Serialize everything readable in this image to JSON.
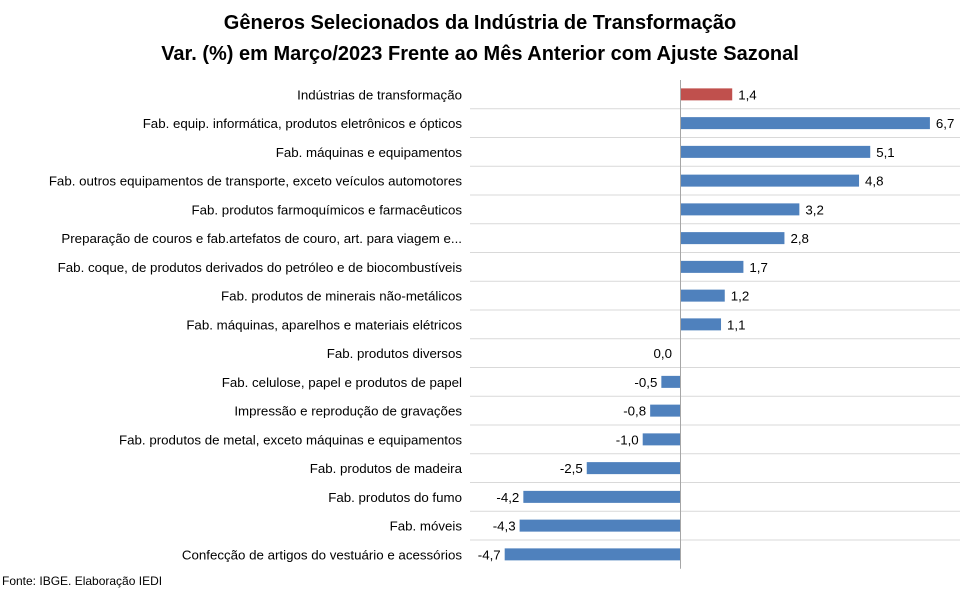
{
  "chart_data": {
    "type": "bar",
    "orientation": "horizontal",
    "title": "Gêneros Selecionados da Indústria de Transformação",
    "subtitle": "Var. (%) em Março/2023 Frente ao Mês Anterior com Ajuste Sazonal",
    "xlabel": "",
    "ylabel": "",
    "xlim": [
      -5.0,
      7.0
    ],
    "grid": "horizontal separators",
    "legend": "none",
    "categories": [
      "Indústrias de transformação",
      "Fab. equip. informática, produtos eletrônicos e ópticos",
      "Fab. máquinas e equipamentos",
      "Fab. outros equipamentos de transporte, exceto veículos automotores",
      "Fab. produtos farmoquímicos e farmacêuticos",
      "Preparação de couros e fab.artefatos de couro, art. para viagem e...",
      "Fab. coque, de produtos derivados do petróleo e de biocombustíveis",
      "Fab. produtos de minerais não-metálicos",
      "Fab. máquinas, aparelhos e materiais elétricos",
      "Fab. produtos diversos",
      "Fab. celulose, papel e produtos de papel",
      "Impressão e reprodução de gravações",
      "Fab. produtos de metal, exceto máquinas e equipamentos",
      "Fab. produtos de madeira",
      "Fab. produtos do fumo",
      "Fab. móveis",
      "Confecção de artigos do vestuário e acessórios"
    ],
    "values": [
      1.4,
      6.7,
      5.1,
      4.8,
      3.2,
      2.8,
      1.7,
      1.2,
      1.1,
      0.0,
      -0.5,
      -0.8,
      -1.0,
      -2.5,
      -4.2,
      -4.3,
      -4.7
    ],
    "value_labels": [
      "1,4",
      "6,7",
      "5,1",
      "4,8",
      "3,2",
      "2,8",
      "1,7",
      "1,2",
      "1,1",
      "0,0",
      "-0,5",
      "-0,8",
      "-1,0",
      "-2,5",
      "-4,2",
      "-4,3",
      "-4,7"
    ],
    "highlight_index": 0,
    "colors": {
      "bar": "#4F81BD",
      "highlight": "#C0504D",
      "axis": "#A6A6A6",
      "separator": "#D9D9D9"
    }
  },
  "source_note": "Fonte: IBGE. Elaboração IEDI"
}
